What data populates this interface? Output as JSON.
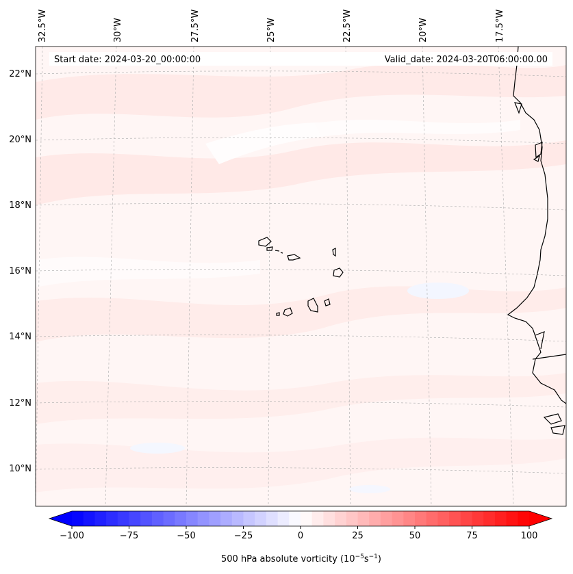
{
  "header": {
    "start_date": "Start date: 2024-03-20_00:00:00",
    "valid_date": "Valid_date: 2024-03-20T06:00:00.00"
  },
  "map": {
    "region": "Cabo Verde / West Africa coast",
    "lon_labels": [
      "32.5°W",
      "30°W",
      "27.5°W",
      "25°W",
      "22.5°W",
      "20°W",
      "17.5°W"
    ],
    "lat_labels": [
      "22°N",
      "20°N",
      "18°N",
      "16°N",
      "14°N",
      "12°N",
      "10°N"
    ],
    "gridlines": true
  },
  "colorbar": {
    "label_prefix": "500 hPa absolute vorticity (10",
    "label_exp1": "−5",
    "label_mid": "s",
    "label_exp2": "−1",
    "label_suffix": ")",
    "ticks": [
      "−100",
      "−75",
      "−50",
      "−25",
      "0",
      "25",
      "50",
      "75",
      "100"
    ],
    "range": [
      -100,
      100
    ],
    "colormap": "bwr",
    "extend": "both",
    "colors": {
      "min": "#0000ff",
      "mid": "#ffffff",
      "max": "#ff0000"
    }
  }
}
